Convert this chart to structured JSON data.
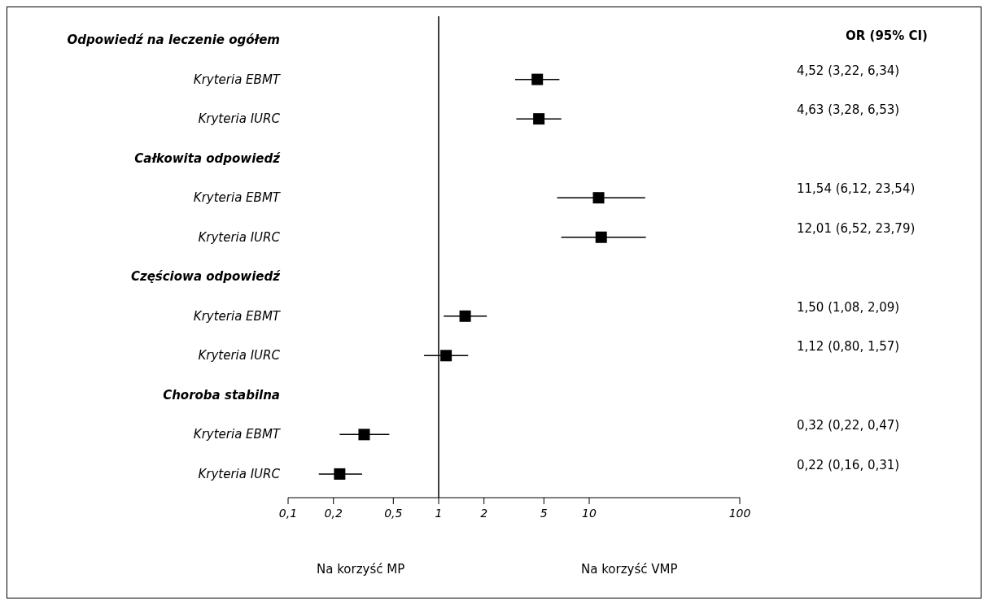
{
  "chart_data": {
    "type": "scatter",
    "orientation": "horizontal",
    "log": "x",
    "marker": "square",
    "color": "#000000",
    "categories": [
      "Odpowiedź na leczenie ogółem",
      "Kryteria EBMT",
      "Kryteria IURC",
      "Całkowita odpowiedź",
      "Kryteria EBMT",
      "Kryteria IURC",
      "Częściowa odpowiedź",
      "Kryteria EBMT",
      "Kryteria IURC",
      "Choroba stabilna",
      "Kryteria EBMT",
      "Kryteria IURC"
    ],
    "values": [
      null,
      4.52,
      4.63,
      null,
      11.54,
      12.01,
      null,
      1.5,
      1.12,
      null,
      0.32,
      0.22
    ],
    "errors": [
      null,
      [
        3.22,
        6.34
      ],
      [
        3.28,
        6.53
      ],
      null,
      [
        6.12,
        23.54
      ],
      [
        6.52,
        23.79
      ],
      null,
      [
        1.08,
        2.09
      ],
      [
        0.8,
        1.57
      ],
      null,
      [
        0.22,
        0.47
      ],
      [
        0.16,
        0.31
      ]
    ],
    "xlim": [
      0.1,
      100
    ],
    "xticks": [
      {
        "value": 0.1,
        "label": "0,1"
      },
      {
        "value": 0.2,
        "label": "0,2"
      },
      {
        "value": 0.5,
        "label": "0,5"
      },
      1,
      2,
      5,
      10,
      100
    ],
    "ref_lines": [
      {
        "axis": "x",
        "value": 1,
        "label": null
      }
    ],
    "annotations": [
      "OR (95% CI)",
      "Na korzyść MP",
      "Na korzyść VMP",
      "4,52 (3,22, 6,34)",
      "4,63 (3,28, 6,53)",
      "11,54 (6,12, 23,54)",
      "12,01 (6,52, 23,79)",
      "1,50 (1,08, 2,09)",
      "1,12 (0,80, 1,57)",
      "0,32 (0,22, 0,47)",
      "0,22 (0,16, 0,31)"
    ]
  }
}
